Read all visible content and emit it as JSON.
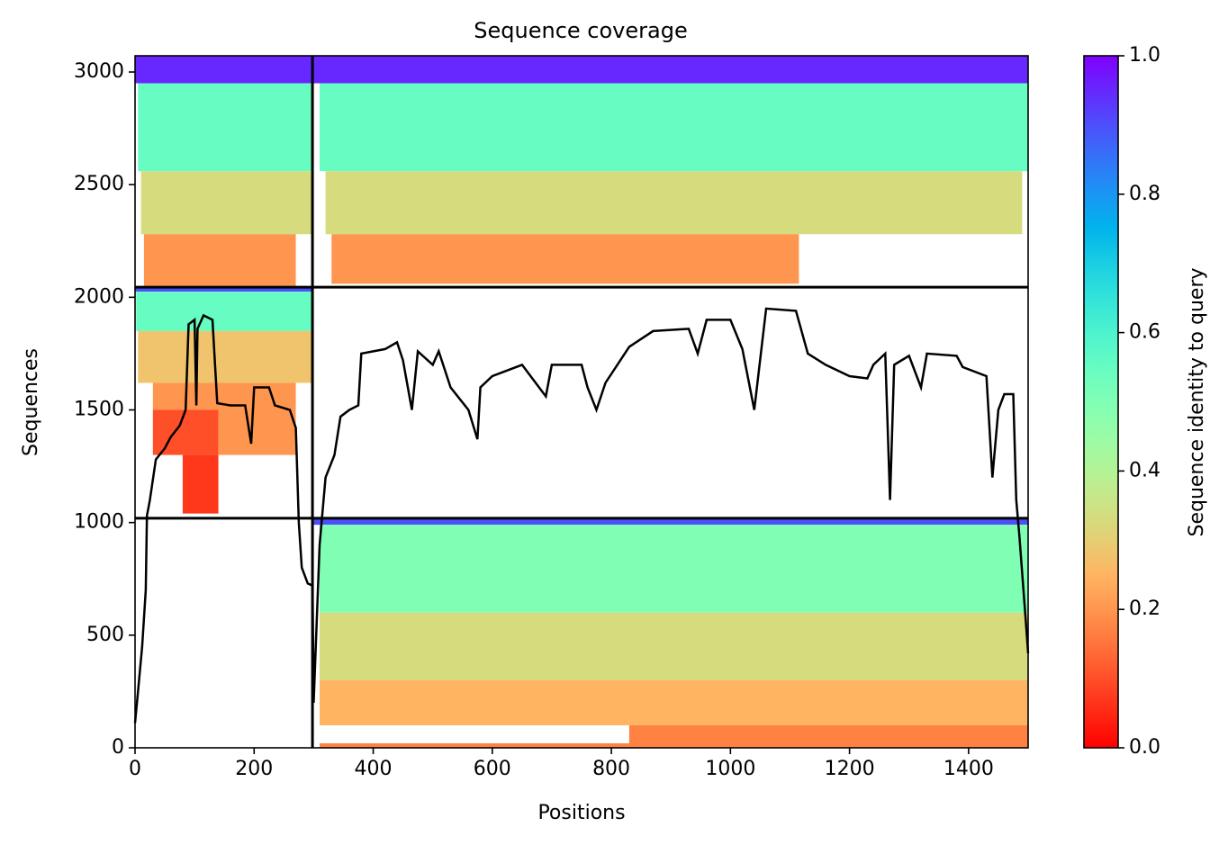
{
  "chart_data": {
    "type": "coverage",
    "title": "Sequence coverage",
    "x_label": "Positions",
    "y_label": "Sequences",
    "colorbar_label": "Sequence identity to query",
    "colormap": "rainbow_r",
    "clim": [
      0,
      1
    ],
    "cticks": [
      {
        "value": 0,
        "label": "0.0"
      },
      0.2,
      0.4,
      0.6,
      0.8,
      {
        "value": 1,
        "label": "1.0"
      }
    ],
    "xlim": [
      0,
      1500
    ],
    "xticks": [
      0,
      200,
      400,
      600,
      800,
      1000,
      1200,
      1400
    ],
    "ylim": [
      0,
      3072
    ],
    "yticks": [
      0,
      500,
      1000,
      1500,
      2000,
      2500,
      3000
    ],
    "boundaries_x": [
      298
    ],
    "boundaries_y": [
      1019,
      2045
    ],
    "blocks": [
      {
        "x": [
          0,
          298
        ],
        "y": [
          2950,
          3072
        ],
        "identity": 0.95
      },
      {
        "x": [
          5,
          298
        ],
        "y": [
          2560,
          2950
        ],
        "identity": 0.55
      },
      {
        "x": [
          10,
          298
        ],
        "y": [
          2280,
          2560
        ],
        "identity": 0.33
      },
      {
        "x": [
          15,
          270
        ],
        "y": [
          2050,
          2280
        ],
        "identity": 0.2
      },
      {
        "x": [
          300,
          1500
        ],
        "y": [
          2950,
          3072
        ],
        "identity": 0.95
      },
      {
        "x": [
          310,
          1500
        ],
        "y": [
          2560,
          2950
        ],
        "identity": 0.55
      },
      {
        "x": [
          320,
          1490
        ],
        "y": [
          2280,
          2560
        ],
        "identity": 0.33
      },
      {
        "x": [
          330,
          1115
        ],
        "y": [
          2060,
          2280
        ],
        "identity": 0.2
      },
      {
        "x": [
          0,
          298
        ],
        "y": [
          2025,
          2045
        ],
        "identity": 0.9
      },
      {
        "x": [
          2,
          298
        ],
        "y": [
          1850,
          2025
        ],
        "identity": 0.55
      },
      {
        "x": [
          5,
          298
        ],
        "y": [
          1620,
          1850
        ],
        "identity": 0.28
      },
      {
        "x": [
          30,
          270
        ],
        "y": [
          1500,
          1620
        ],
        "identity": 0.2
      },
      {
        "x": [
          30,
          140
        ],
        "y": [
          1300,
          1500
        ],
        "identity": 0.1
      },
      {
        "x": [
          140,
          270
        ],
        "y": [
          1300,
          1500
        ],
        "identity": 0.2
      },
      {
        "x": [
          80,
          140
        ],
        "y": [
          1040,
          1300
        ],
        "identity": 0.07
      },
      {
        "x": [
          300,
          1500
        ],
        "y": [
          990,
          1019
        ],
        "identity": 0.9
      },
      {
        "x": [
          310,
          1500
        ],
        "y": [
          600,
          990
        ],
        "identity": 0.5
      },
      {
        "x": [
          310,
          1500
        ],
        "y": [
          300,
          600
        ],
        "identity": 0.33
      },
      {
        "x": [
          310,
          1500
        ],
        "y": [
          100,
          300
        ],
        "identity": 0.25
      },
      {
        "x": [
          830,
          1500
        ],
        "y": [
          0,
          100
        ],
        "identity": 0.17
      },
      {
        "x": [
          310,
          830
        ],
        "y": [
          0,
          20
        ],
        "identity": 0.17
      }
    ],
    "coverage": {
      "x": [
        0,
        5,
        12,
        18,
        20,
        25,
        35,
        50,
        60,
        75,
        85,
        90,
        100,
        103,
        105,
        115,
        130,
        138,
        160,
        185,
        195,
        200,
        225,
        235,
        260,
        270,
        275,
        280,
        290,
        298,
        300,
        310,
        320,
        335,
        345,
        360,
        375,
        380,
        420,
        440,
        450,
        465,
        475,
        500,
        510,
        530,
        560,
        575,
        580,
        600,
        650,
        690,
        700,
        750,
        760,
        775,
        790,
        830,
        870,
        930,
        945,
        960,
        1000,
        1020,
        1040,
        1060,
        1110,
        1130,
        1160,
        1200,
        1230,
        1240,
        1260,
        1268,
        1275,
        1300,
        1320,
        1330,
        1380,
        1390,
        1430,
        1440,
        1450,
        1460,
        1475,
        1480,
        1485,
        1495,
        1500
      ],
      "values": [
        110,
        250,
        450,
        700,
        1030,
        1100,
        1280,
        1330,
        1380,
        1430,
        1500,
        1880,
        1900,
        1520,
        1860,
        1920,
        1900,
        1530,
        1520,
        1520,
        1350,
        1600,
        1600,
        1520,
        1500,
        1420,
        1000,
        800,
        730,
        720,
        200,
        900,
        1200,
        1300,
        1470,
        1500,
        1520,
        1750,
        1770,
        1800,
        1720,
        1500,
        1760,
        1700,
        1760,
        1600,
        1500,
        1370,
        1600,
        1650,
        1700,
        1560,
        1700,
        1700,
        1600,
        1500,
        1620,
        1780,
        1850,
        1860,
        1750,
        1900,
        1900,
        1770,
        1500,
        1950,
        1940,
        1750,
        1700,
        1650,
        1640,
        1700,
        1750,
        1100,
        1700,
        1740,
        1600,
        1750,
        1740,
        1690,
        1650,
        1200,
        1500,
        1570,
        1570,
        1100,
        950,
        600,
        420
      ]
    }
  }
}
